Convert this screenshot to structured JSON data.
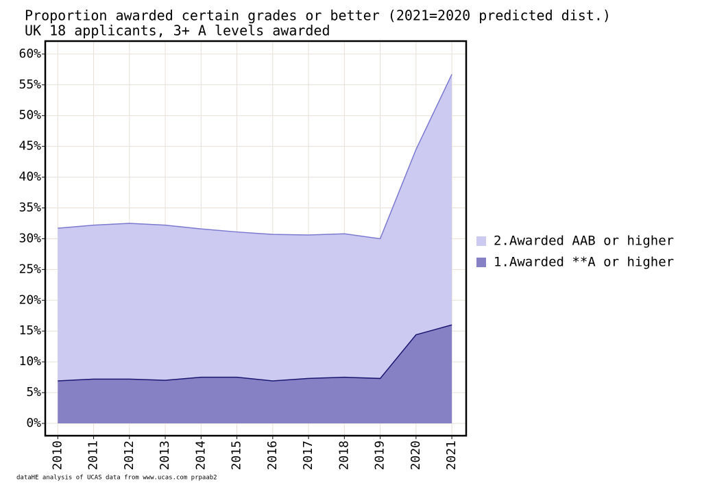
{
  "chart_data": {
    "type": "area",
    "title": "Proportion awarded certain grades or better (2021=2020 predicted dist.)",
    "subtitle": "UK 18 applicants, 3+ A levels awarded",
    "caption": "dataHE analysis of UCAS data from www.ucas.com  prpaab2",
    "x": [
      2010,
      2011,
      2012,
      2013,
      2014,
      2015,
      2016,
      2017,
      2018,
      2019,
      2020,
      2021
    ],
    "series": [
      {
        "name": "2.Awarded AAB or higher",
        "color": "#cccaf0",
        "line_color": "#7b78d0",
        "values": [
          31.7,
          32.2,
          32.5,
          32.2,
          31.6,
          31.1,
          30.7,
          30.6,
          30.8,
          30.0,
          44.5,
          56.7
        ]
      },
      {
        "name": "1.Awarded **A or higher",
        "color": "#8681c4",
        "line_color": "#1a1670",
        "values": [
          6.9,
          7.2,
          7.2,
          7.0,
          7.5,
          7.5,
          6.9,
          7.3,
          7.5,
          7.3,
          14.4,
          16.0
        ]
      }
    ],
    "xlim": [
      2009.65,
      2021.4
    ],
    "xticks": [
      2010,
      2011,
      2012,
      2013,
      2014,
      2015,
      2016,
      2017,
      2018,
      2019,
      2020,
      2021
    ],
    "ylim": [
      -2,
      62.1
    ],
    "yticks": [
      {
        "value": 0,
        "label": "0%"
      },
      {
        "value": 5,
        "label": "5%"
      },
      {
        "value": 10,
        "label": "10%"
      },
      {
        "value": 15,
        "label": "15%"
      },
      {
        "value": 20,
        "label": "20%"
      },
      {
        "value": 25,
        "label": "25%"
      },
      {
        "value": 30,
        "label": "30%"
      },
      {
        "value": 35,
        "label": "35%"
      },
      {
        "value": 40,
        "label": "40%"
      },
      {
        "value": 45,
        "label": "45%"
      },
      {
        "value": 50,
        "label": "50%"
      },
      {
        "value": 55,
        "label": "55%"
      },
      {
        "value": 60,
        "label": "60%"
      }
    ],
    "grid": true
  }
}
